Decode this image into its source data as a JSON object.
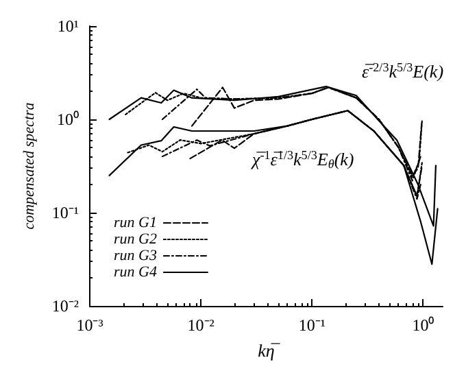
{
  "chart_data": {
    "type": "line",
    "xlabel": "kη̅",
    "ylabel": "compensated spectra",
    "log": "xy",
    "grid": false,
    "legend": "bottom left",
    "marker": "none",
    "xlim": [
      0.001,
      1.5
    ],
    "ylim": [
      0.01,
      10
    ],
    "xticks": [
      {
        "value": 0.001,
        "label": "10⁻³"
      },
      {
        "value": 0.01,
        "label": "10⁻²"
      },
      {
        "value": 0.1,
        "label": "10⁻¹"
      },
      {
        "value": 1,
        "label": "10⁰"
      }
    ],
    "yticks": [
      {
        "value": 0.01,
        "label": "10⁻²"
      },
      {
        "value": 0.1,
        "label": "10⁻¹"
      },
      {
        "value": 1,
        "label": "10⁰"
      },
      {
        "value": 10,
        "label": "10¹"
      }
    ],
    "annotations": [
      "ε̅$^{-2/3}$k$^{5/3}$E(k)",
      "χ̅$^{-1}$ε̅$^{1/3}$k$^{5/3}$E$_{θ}$(k)"
    ],
    "series": [
      {
        "name": "run G1",
        "color": "#000000",
        "line_style": "dashed",
        "x": [
          0.0083,
          0.0157,
          0.02,
          0.03,
          0.05,
          0.1,
          0.14,
          0.25,
          0.4,
          0.6,
          0.8,
          0.9,
          0.97
        ],
        "values": [
          0.85,
          2.2,
          1.32,
          1.6,
          1.65,
          1.9,
          2.2,
          1.7,
          1.0,
          0.5,
          0.25,
          0.3,
          0.9
        ]
      },
      {
        "name": "run G2",
        "color": "#000000",
        "line_style": "dotted",
        "x": [
          0.0021,
          0.0039,
          0.005,
          0.007,
          0.01,
          0.02,
          0.05,
          0.1,
          0.14,
          0.25,
          0.4,
          0.6,
          0.8,
          0.92,
          0.98
        ],
        "values": [
          1.13,
          1.93,
          1.6,
          1.9,
          1.7,
          1.65,
          1.7,
          1.9,
          2.2,
          1.7,
          1.0,
          0.5,
          0.24,
          0.35,
          1.0
        ]
      },
      {
        "name": "run G3",
        "color": "#000000",
        "line_style": "dashdot",
        "x": [
          0.0045,
          0.0092,
          0.011,
          0.02,
          0.05,
          0.1,
          0.14,
          0.25,
          0.4,
          0.6,
          0.8,
          0.95
        ],
        "values": [
          1.0,
          2.1,
          1.7,
          1.65,
          1.7,
          1.9,
          2.2,
          1.7,
          1.0,
          0.5,
          0.22,
          0.4
        ]
      },
      {
        "name": "run G4",
        "color": "#000000",
        "line_style": "solid",
        "x": [
          0.0015,
          0.0029,
          0.0044,
          0.0057,
          0.0083,
          0.02,
          0.05,
          0.134,
          0.25,
          0.39,
          0.58,
          0.9,
          1.24,
          1.3
        ],
        "values": [
          1.0,
          1.7,
          1.5,
          2.05,
          1.7,
          1.6,
          1.75,
          2.25,
          1.8,
          1.0,
          0.6,
          0.2,
          0.072,
          0.32
        ]
      },
      {
        "color": "#000000",
        "line_style": "dashed",
        "x": [
          0.008,
          0.0155,
          0.02,
          0.03,
          0.06,
          0.1,
          0.21,
          0.36,
          0.67,
          0.88,
          0.97
        ],
        "values": [
          0.38,
          0.6,
          0.49,
          0.7,
          0.85,
          1.0,
          1.24,
          0.75,
          0.32,
          0.15,
          0.3
        ]
      },
      {
        "color": "#000000",
        "line_style": "dotted",
        "x": [
          0.0022,
          0.0034,
          0.0045,
          0.0065,
          0.01,
          0.03,
          0.06,
          0.1,
          0.21,
          0.36,
          0.67,
          0.88,
          0.98
        ],
        "values": [
          0.44,
          0.53,
          0.45,
          0.6,
          0.55,
          0.7,
          0.85,
          1.0,
          1.24,
          0.75,
          0.32,
          0.15,
          0.35
        ]
      },
      {
        "color": "#000000",
        "line_style": "dashdot",
        "x": [
          0.0045,
          0.0092,
          0.012,
          0.03,
          0.06,
          0.1,
          0.21,
          0.36,
          0.67,
          0.88,
          0.95
        ],
        "values": [
          0.4,
          0.6,
          0.52,
          0.7,
          0.85,
          1.0,
          1.24,
          0.75,
          0.32,
          0.14,
          0.2
        ]
      },
      {
        "color": "#000000",
        "line_style": "solid",
        "x": [
          0.0015,
          0.0029,
          0.0044,
          0.0057,
          0.0083,
          0.03,
          0.06,
          0.1,
          0.21,
          0.36,
          0.67,
          0.95,
          1.2,
          1.35
        ],
        "values": [
          0.25,
          0.53,
          0.59,
          0.83,
          0.75,
          0.75,
          0.85,
          1.0,
          1.24,
          0.75,
          0.32,
          0.08,
          0.028,
          0.11
        ]
      }
    ]
  }
}
